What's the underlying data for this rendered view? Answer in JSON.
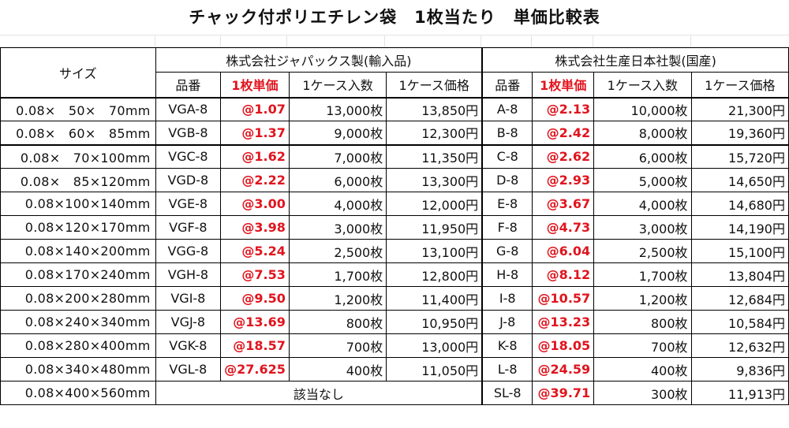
{
  "title": "チャック付ポリエチレン袋　1枚当たり　単価比較表",
  "headers": {
    "size": "サイズ",
    "group_a": "株式会社ジャパックス製(輸入品)",
    "group_b": "株式会社生産日本社製(国産)",
    "col_code": "品番",
    "col_unit_price": "1枚単価",
    "col_case_qty": "1ケース入数",
    "col_case_price": "1ケース価格"
  },
  "rows": [
    {
      "size": "0.08×　50×　70mm",
      "a_code": "VGA-8",
      "a_unit": "@1.07",
      "a_qty": "13,000枚",
      "a_price": "13,850円",
      "b_code": "A-8",
      "b_unit": "@2.13",
      "b_qty": "10,000枚",
      "b_price": "21,300円"
    },
    {
      "size": "0.08×　60×　85mm",
      "a_code": "VGB-8",
      "a_unit": "@1.37",
      "a_qty": "9,000枚",
      "a_price": "12,300円",
      "b_code": "B-8",
      "b_unit": "@2.42",
      "b_qty": "8,000枚",
      "b_price": "19,360円"
    },
    {
      "size": "0.08×　70×100mm",
      "a_code": "VGC-8",
      "a_unit": "@1.62",
      "a_qty": "7,000枚",
      "a_price": "11,350円",
      "b_code": "C-8",
      "b_unit": "@2.62",
      "b_qty": "6,000枚",
      "b_price": "15,720円"
    },
    {
      "size": "0.08×　85×120mm",
      "a_code": "VGD-8",
      "a_unit": "@2.22",
      "a_qty": "6,000枚",
      "a_price": "13,300円",
      "b_code": "D-8",
      "b_unit": "@2.93",
      "b_qty": "5,000枚",
      "b_price": "14,650円"
    },
    {
      "size": "0.08×100×140mm",
      "a_code": "VGE-8",
      "a_unit": "@3.00",
      "a_qty": "4,000枚",
      "a_price": "12,000円",
      "b_code": "E-8",
      "b_unit": "@3.67",
      "b_qty": "4,000枚",
      "b_price": "14,680円"
    },
    {
      "size": "0.08×120×170mm",
      "a_code": "VGF-8",
      "a_unit": "@3.98",
      "a_qty": "3,000枚",
      "a_price": "11,950円",
      "b_code": "F-8",
      "b_unit": "@4.73",
      "b_qty": "3,000枚",
      "b_price": "14,190円"
    },
    {
      "size": "0.08×140×200mm",
      "a_code": "VGG-8",
      "a_unit": "@5.24",
      "a_qty": "2,500枚",
      "a_price": "13,100円",
      "b_code": "G-8",
      "b_unit": "@6.04",
      "b_qty": "2,500枚",
      "b_price": "15,100円"
    },
    {
      "size": "0.08×170×240mm",
      "a_code": "VGH-8",
      "a_unit": "@7.53",
      "a_qty": "1,700枚",
      "a_price": "12,800円",
      "b_code": "H-8",
      "b_unit": "@8.12",
      "b_qty": "1,700枚",
      "b_price": "13,804円"
    },
    {
      "size": "0.08×200×280mm",
      "a_code": "VGI-8",
      "a_unit": "@9.50",
      "a_qty": "1,200枚",
      "a_price": "11,400円",
      "b_code": "I-8",
      "b_unit": "@10.57",
      "b_qty": "1,200枚",
      "b_price": "12,684円"
    },
    {
      "size": "0.08×240×340mm",
      "a_code": "VGJ-8",
      "a_unit": "@13.69",
      "a_qty": "800枚",
      "a_price": "10,950円",
      "b_code": "J-8",
      "b_unit": "@13.23",
      "b_qty": "800枚",
      "b_price": "10,584円"
    },
    {
      "size": "0.08×280×400mm",
      "a_code": "VGK-8",
      "a_unit": "@18.57",
      "a_qty": "700枚",
      "a_price": "13,000円",
      "b_code": "K-8",
      "b_unit": "@18.05",
      "b_qty": "700枚",
      "b_price": "12,632円"
    },
    {
      "size": "0.08×340×480mm",
      "a_code": "VGL-8",
      "a_unit": "@27.625",
      "a_qty": "400枚",
      "a_price": "11,050円",
      "b_code": "L-8",
      "b_unit": "@24.59",
      "b_qty": "400枚",
      "b_price": "9,836円"
    }
  ],
  "last_row": {
    "size": "0.08×400×560mm",
    "a_none": "該当なし",
    "b_code": "SL-8",
    "b_unit": "@39.71",
    "b_qty": "300枚",
    "b_price": "11,913円"
  },
  "colors": {
    "unit_price": "#e0141e",
    "border": "#000000"
  }
}
